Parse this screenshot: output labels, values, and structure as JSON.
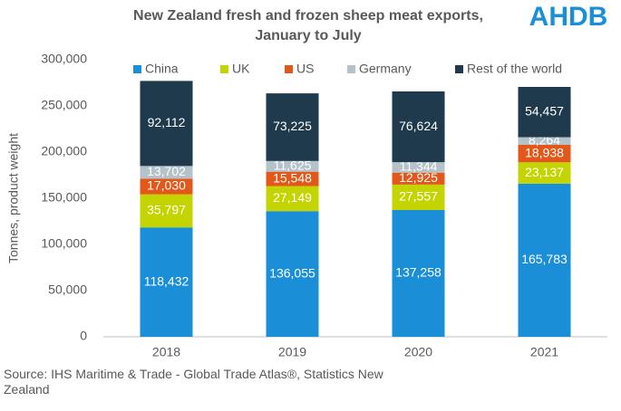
{
  "chart_data": {
    "type": "stacked_bar",
    "title_lines": [
      "New Zealand fresh and frozen sheep meat exports,",
      "January to July"
    ],
    "logo": "AHDB",
    "ylabel": "Tonnes, product weight",
    "source": "Source: IHS Maritime & Trade - Global Trade Atlas®, Statistics New Zealand",
    "categories": [
      "2018",
      "2019",
      "2020",
      "2021"
    ],
    "series": [
      {
        "name": "China",
        "color": "#1a8fd8",
        "values": [
          118432,
          136055,
          137258,
          165783
        ],
        "value_labels": [
          "118,432",
          "136,055",
          "137,258",
          "165,783"
        ]
      },
      {
        "name": "UK",
        "color": "#c3d400",
        "values": [
          35797,
          27149,
          27557,
          23137
        ],
        "value_labels": [
          "35,797",
          "27,149",
          "27,557",
          "23,137"
        ]
      },
      {
        "name": "US",
        "color": "#e2581a",
        "values": [
          17030,
          15548,
          12925,
          18938
        ],
        "value_labels": [
          "17,030",
          "15,548",
          "12,925",
          "18,938"
        ]
      },
      {
        "name": "Germany",
        "color": "#b4c2ca",
        "values": [
          13702,
          11625,
          11344,
          8264
        ],
        "value_labels": [
          "13,702",
          "11,625",
          "11,344",
          "8,264"
        ]
      },
      {
        "name": "Rest of the world",
        "color": "#1e3a4c",
        "values": [
          92112,
          73225,
          76624,
          54457
        ],
        "value_labels": [
          "92,112",
          "73,225",
          "76,624",
          "54,457"
        ]
      }
    ],
    "ylim": [
      0,
      300000
    ],
    "yticks": [
      0,
      {
        "value": 50000,
        "label": "50,000"
      },
      {
        "value": 100000,
        "label": "100,000"
      },
      {
        "value": 150000,
        "label": "150,000"
      },
      {
        "value": 200000,
        "label": "200,000"
      },
      {
        "value": 250000,
        "label": "250,000"
      },
      {
        "value": 300000,
        "label": "300,000"
      }
    ],
    "grid": false,
    "legend": "top"
  }
}
